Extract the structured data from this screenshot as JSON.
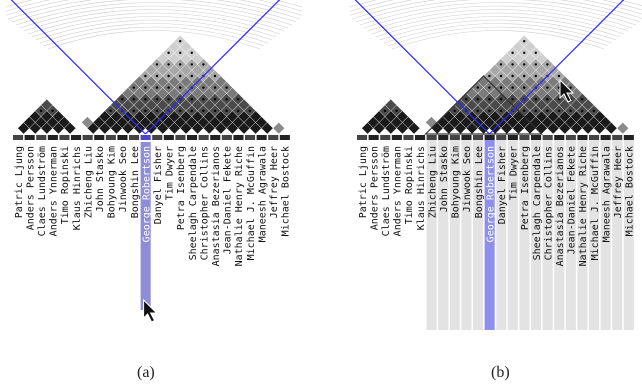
{
  "colors": {
    "accent": "#2a2aff",
    "highlight": "#8f8ff0",
    "column_shade": "#e3e3e3",
    "selected_strip": "#8e8ed8"
  },
  "names": [
    "Patric Ljung",
    "Anders Persson",
    "Claes Lundström",
    "Anders Ynnerman",
    "Timo Ropinski",
    "Klaus Hinrichs",
    "Zhicheng Liu",
    "John Stasko",
    "Bohyoung Kim",
    "Jinwook Seo",
    "Bongshin Lee",
    "George Robertson",
    "Danyel Fisher",
    "Tim Dwyer",
    "Petra Isenberg",
    "Sheelagh Carpendale",
    "Christopher Collins",
    "Anastasia Bezerianos",
    "Jean-Daniel Fekete",
    "Nathalie Henry Riche",
    "Michael J. McGuffin",
    "Maneesh Agrawala",
    "Jeffrey Heer",
    "Michael Bostock"
  ],
  "panels": [
    {
      "caption": "(a)",
      "selected": "George Robertson",
      "cursor_icon": "arrow-cursor-icon"
    },
    {
      "caption": "(b)",
      "selected": "George Robertson",
      "cursor_icon": "arrow-cursor-icon"
    }
  ]
}
